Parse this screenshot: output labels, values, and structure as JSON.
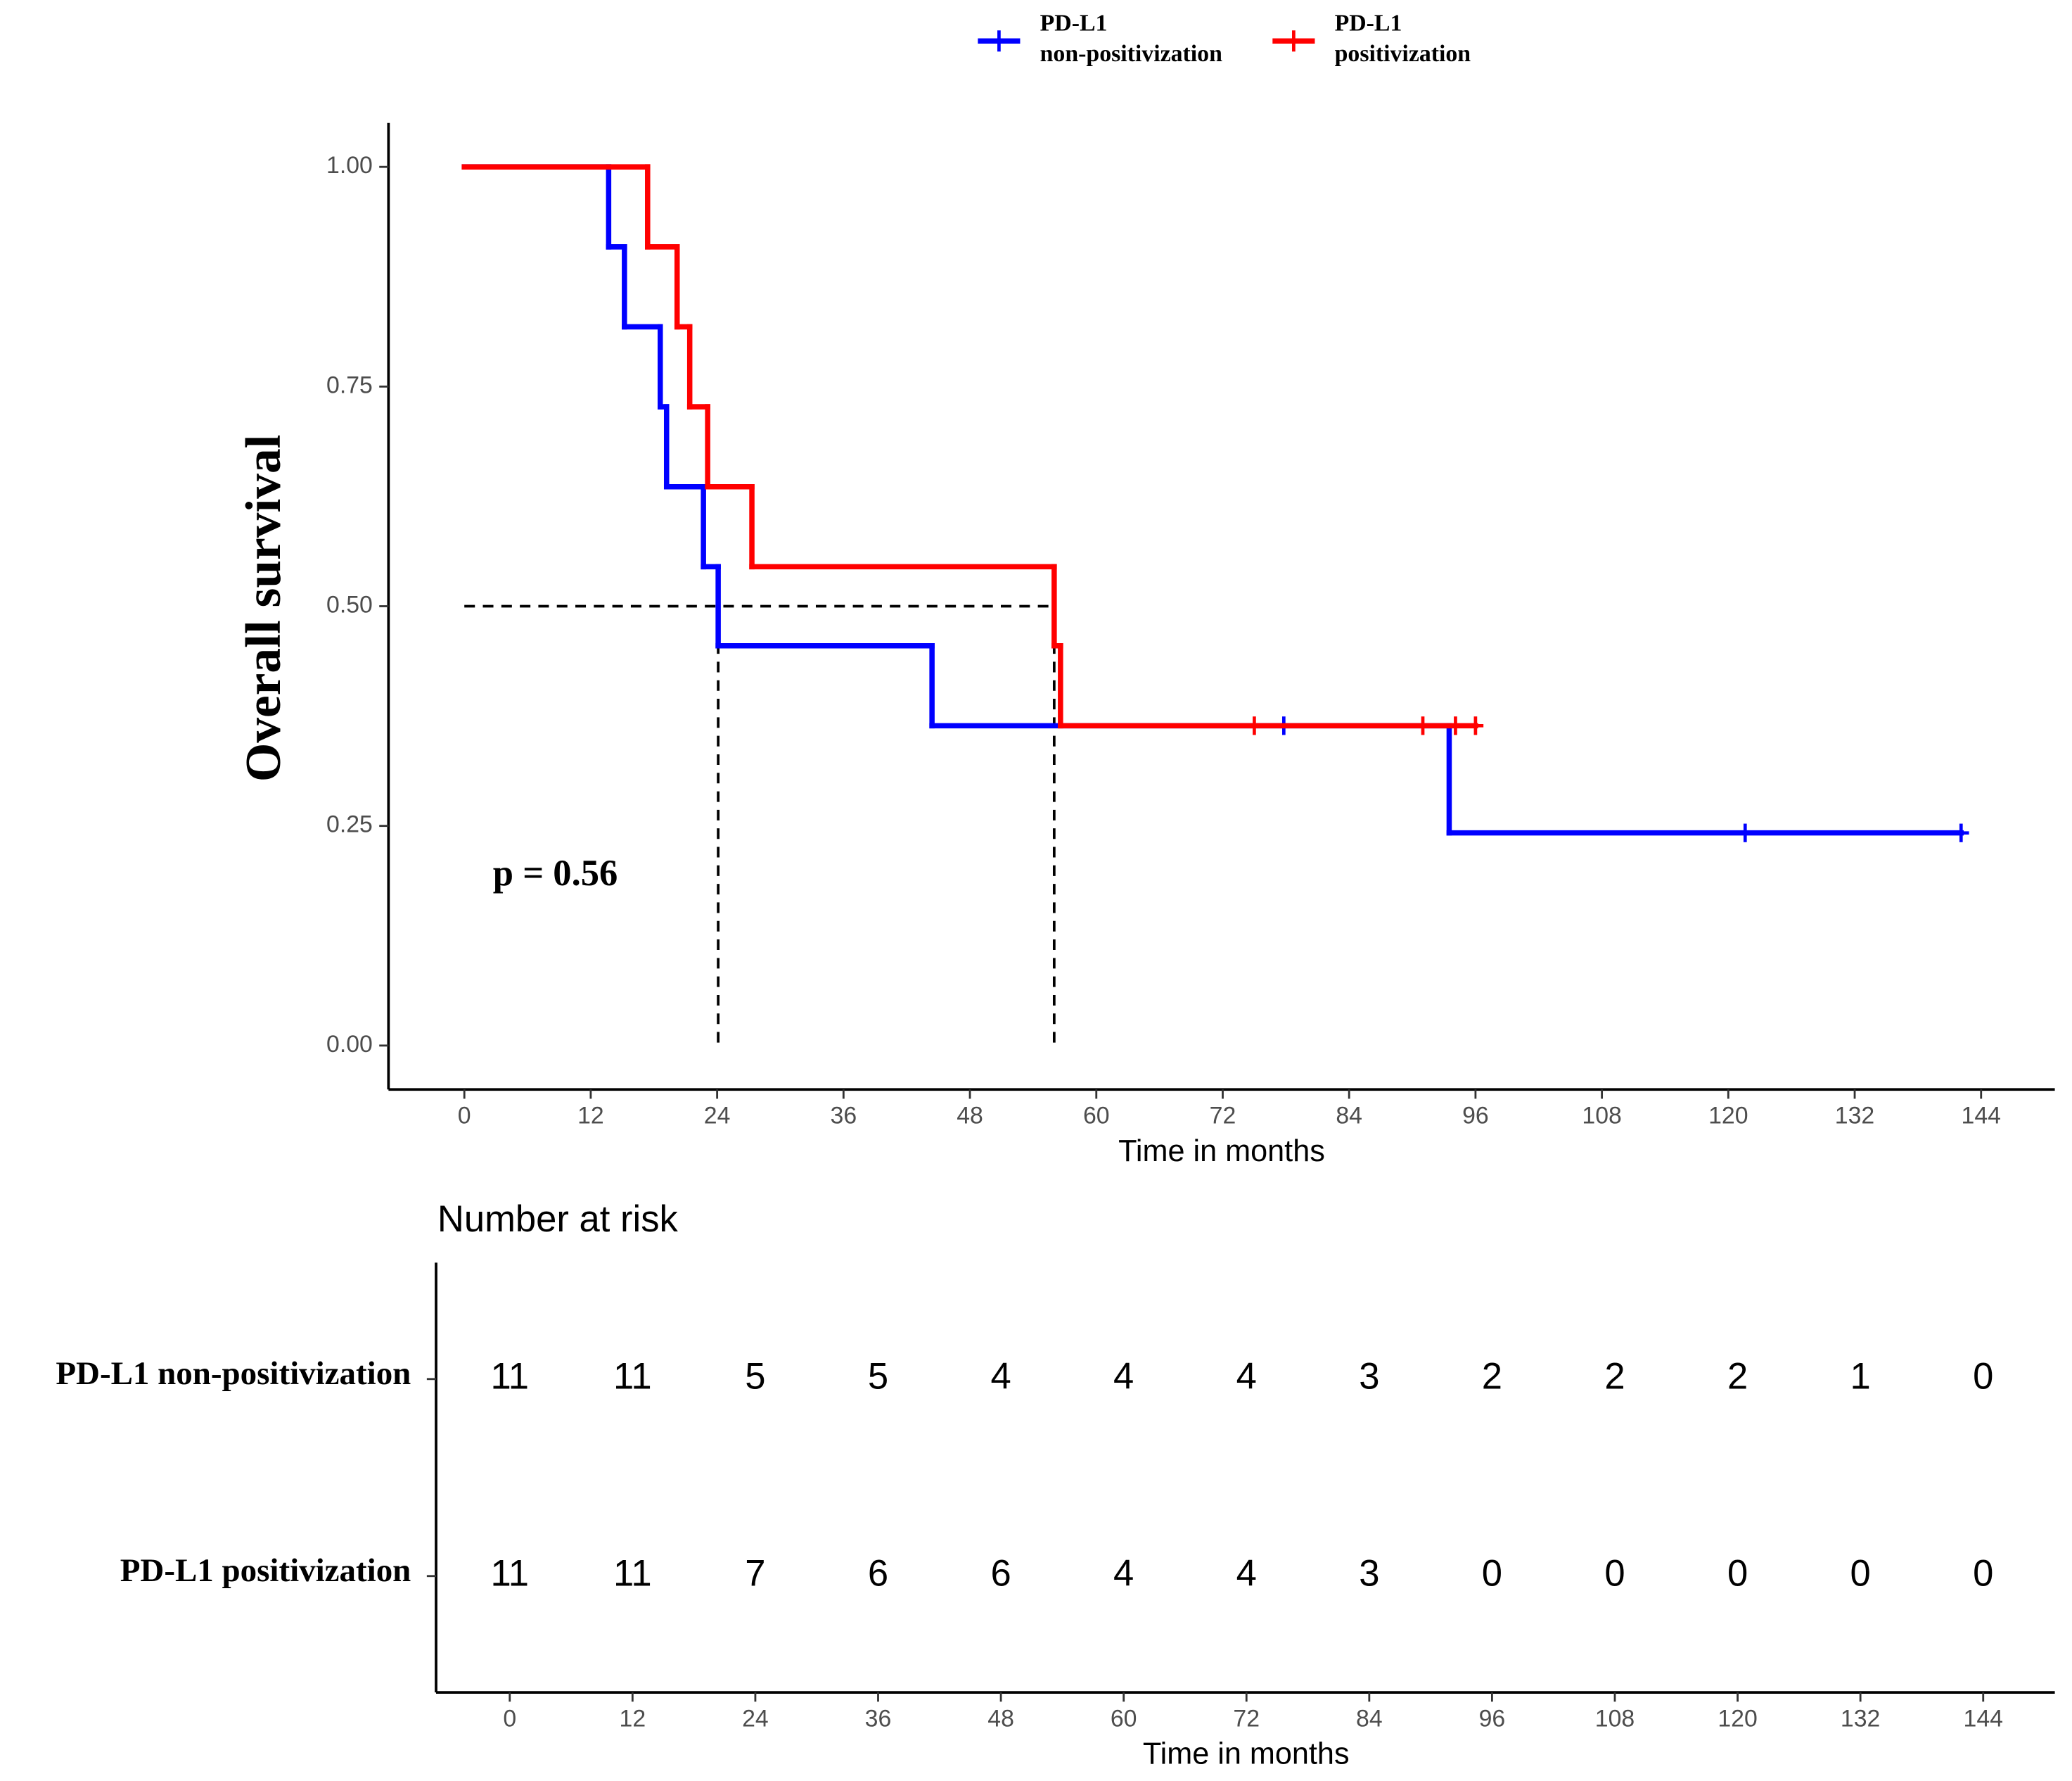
{
  "chart_data": [
    {
      "type": "km",
      "y_label": "Overall survival",
      "x_label": "Time in months",
      "annotation": "p = 0.56",
      "xlim": [
        -7.2,
        151
      ],
      "ylim": [
        -0.05,
        1.05
      ],
      "xticks": [
        0,
        12,
        24,
        36,
        48,
        60,
        72,
        84,
        96,
        108,
        120,
        132,
        144
      ],
      "yticks": [
        {
          "value": 0,
          "label": "0.00"
        },
        {
          "value": 0.25,
          "label": "0.25"
        },
        {
          "value": 0.5,
          "label": "0.50"
        },
        {
          "value": 0.75,
          "label": "0.75"
        },
        {
          "value": 1,
          "label": "1.00"
        }
      ],
      "median": {
        "y": 0.5,
        "x": [
          24.1,
          56.0
        ]
      },
      "series": [
        {
          "name": "PD-L1 non-positivization",
          "color": "#0000ff",
          "x": [
            0,
            13.7,
            15.2,
            18.6,
            19.2,
            22.7,
            24.1,
            44.4,
            93.5
          ],
          "values": [
            1,
            0.909,
            0.818,
            0.727,
            0.636,
            0.545,
            0.455,
            0.364,
            0.242
          ],
          "censor_x": [
            77.8,
            121.6,
            142.1
          ],
          "censor_values": [
            0.364,
            0.242,
            0.242
          ]
        },
        {
          "name": "PD-L1 positivization",
          "color": "#ff0000",
          "x": [
            0,
            17.4,
            20.2,
            21.4,
            23.1,
            27.3,
            56.0,
            56.6
          ],
          "values": [
            1,
            0.909,
            0.818,
            0.727,
            0.636,
            0.545,
            0.455,
            0.364
          ],
          "censor_x": [
            75.0,
            91.0,
            94.1,
            96.0
          ],
          "censor_values": [
            0.364,
            0.364,
            0.364,
            0.364
          ]
        }
      ]
    },
    {
      "type": "risk_table",
      "title": "Number at risk",
      "x_label": "Time in months",
      "xlim": [
        -7.2,
        151
      ],
      "xticks": [
        0,
        12,
        24,
        36,
        48,
        60,
        72,
        84,
        96,
        108,
        120,
        132,
        144
      ],
      "series": [
        {
          "name": "PD-L1 non-positivization",
          "values": [
            11,
            11,
            5,
            5,
            4,
            4,
            4,
            3,
            2,
            2,
            2,
            1,
            0
          ]
        },
        {
          "name": "PD-L1 positivization",
          "values": [
            11,
            11,
            7,
            6,
            6,
            4,
            4,
            3,
            0,
            0,
            0,
            0,
            0
          ]
        }
      ]
    }
  ]
}
